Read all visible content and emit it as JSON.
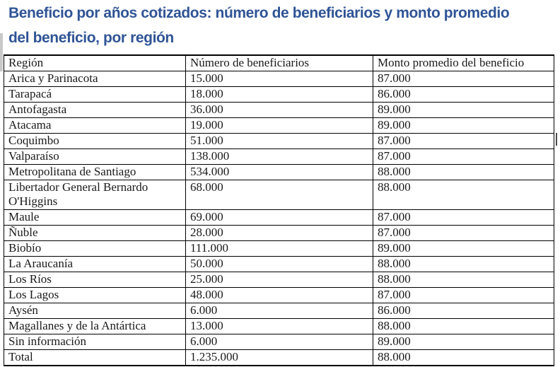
{
  "title": {
    "line1": "Beneficio por años cotizados: número de beneficiarios y monto promedio",
    "line2": "del beneficio, por región"
  },
  "colors": {
    "title_blue": "#2F5496",
    "table_border": "#000000",
    "table_text": "#1A1A1A"
  },
  "table": {
    "columns": [
      "Región",
      "Número de beneficiarios",
      "Monto promedio del beneficio"
    ],
    "rows": [
      [
        "Arica y Parinacota",
        "15.000",
        "87.000"
      ],
      [
        "Tarapacá",
        "18.000",
        "86.000"
      ],
      [
        "Antofagasta",
        "36.000",
        "89.000"
      ],
      [
        "Atacama",
        "19.000",
        "89.000"
      ],
      [
        "Coquimbo",
        "51.000",
        "87.000"
      ],
      [
        "Valparaíso",
        "138.000",
        "87.000"
      ],
      [
        "Metropolitana de Santiago",
        "534.000",
        "88.000"
      ],
      [
        "Libertador General Bernardo O'Higgins",
        "68.000",
        "88.000"
      ],
      [
        "Maule",
        "69.000",
        "87.000"
      ],
      [
        "Ñuble",
        "28.000",
        "87.000"
      ],
      [
        "Biobío",
        "111.000",
        "89.000"
      ],
      [
        "La Araucanía",
        "50.000",
        "88.000"
      ],
      [
        "Los Ríos",
        "25.000",
        "88.000"
      ],
      [
        "Los Lagos",
        "48.000",
        "87.000"
      ],
      [
        "Aysén",
        "6.000",
        "86.000"
      ],
      [
        "Magallanes y de la Antártica",
        "13.000",
        "88.000"
      ],
      [
        "Sin información",
        "6.000",
        "89.000"
      ],
      [
        "Total",
        "1.235.000",
        "88.000"
      ]
    ],
    "total_label": "Total"
  }
}
